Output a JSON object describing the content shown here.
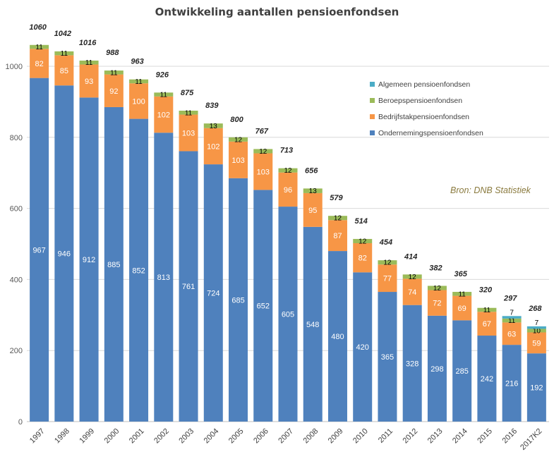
{
  "chart_data": {
    "type": "bar",
    "stacked": true,
    "title": "Ontwikkeling aantallen pensioenfondsen",
    "xlabel": "",
    "ylabel": "",
    "ylim": [
      0,
      1100
    ],
    "yticks": [
      0,
      200,
      400,
      600,
      800,
      1000
    ],
    "grid": true,
    "legend_position": "top-right",
    "categories": [
      "1997",
      "1998",
      "1999",
      "2000",
      "2001",
      "2002",
      "2003",
      "2004",
      "2005",
      "2006",
      "2007",
      "2008",
      "2009",
      "2010",
      "2011",
      "2012",
      "2013",
      "2014",
      "2015",
      "2016",
      "2017K2"
    ],
    "series": [
      {
        "name": "Ondernemingspensioenfondsen",
        "color": "#4f81bd",
        "values": [
          967,
          946,
          912,
          885,
          852,
          813,
          761,
          724,
          685,
          652,
          605,
          548,
          480,
          420,
          365,
          328,
          298,
          285,
          242,
          216,
          192
        ]
      },
      {
        "name": "Bedrijfstakpensioenfondsen",
        "color": "#f79646",
        "values": [
          82,
          85,
          93,
          92,
          100,
          102,
          103,
          102,
          103,
          103,
          96,
          95,
          87,
          82,
          77,
          74,
          72,
          69,
          67,
          63,
          59
        ]
      },
      {
        "name": "Beroepspensioenfondsen",
        "color": "#9bbb59",
        "values": [
          11,
          11,
          11,
          11,
          11,
          11,
          11,
          13,
          12,
          12,
          12,
          13,
          12,
          12,
          12,
          12,
          12,
          11,
          11,
          11,
          10
        ]
      },
      {
        "name": "Algemeen pensioenfondsen",
        "color": "#4bacc6",
        "values": [
          0,
          0,
          0,
          0,
          0,
          0,
          0,
          0,
          0,
          0,
          0,
          0,
          0,
          0,
          0,
          0,
          0,
          0,
          0,
          7,
          7
        ]
      }
    ],
    "totals": [
      1060,
      1042,
      1016,
      988,
      963,
      926,
      875,
      839,
      800,
      767,
      713,
      656,
      579,
      514,
      454,
      414,
      382,
      365,
      320,
      297,
      268
    ],
    "legend_order": [
      "Algemeen pensioenfondsen",
      "Beroepspensioenfondsen",
      "Bedrijfstakpensioenfondsen",
      "Ondernemingspensioenfondsen"
    ],
    "annotation": "Bron: DNB Statistiek"
  }
}
